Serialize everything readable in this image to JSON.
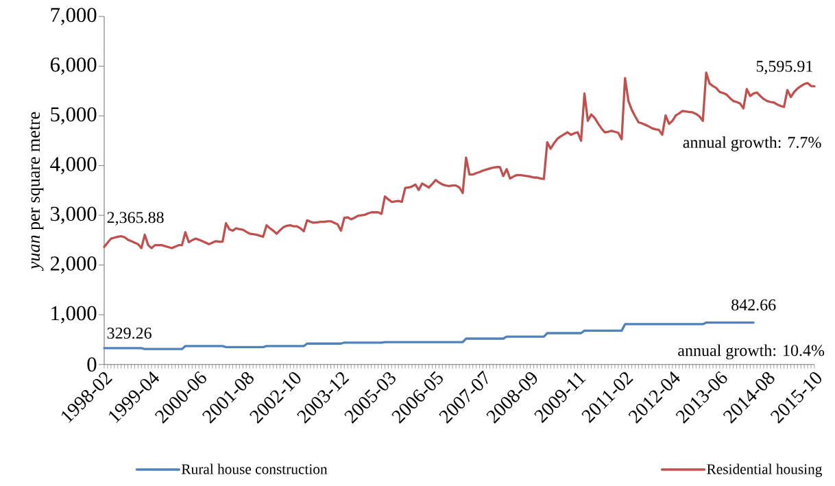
{
  "chart_data": {
    "type": "line",
    "ylabel": "*yuan* per square metre",
    "categories": [
      "1998-02",
      null,
      null,
      null,
      null,
      null,
      null,
      null,
      null,
      null,
      null,
      null,
      null,
      null,
      "1999-04",
      null,
      null,
      null,
      null,
      null,
      null,
      null,
      null,
      null,
      null,
      null,
      null,
      null,
      "2000-06",
      null,
      null,
      null,
      null,
      null,
      null,
      null,
      null,
      null,
      null,
      null,
      null,
      null,
      "2001-08",
      null,
      null,
      null,
      null,
      null,
      null,
      null,
      null,
      null,
      null,
      null,
      null,
      null,
      "2002-10",
      null,
      null,
      null,
      null,
      null,
      null,
      null,
      null,
      null,
      null,
      null,
      null,
      null,
      "2003-12",
      null,
      null,
      null,
      null,
      null,
      null,
      null,
      null,
      null,
      null,
      null,
      null,
      null,
      "2005-03",
      null,
      null,
      null,
      null,
      null,
      null,
      null,
      null,
      null,
      null,
      null,
      null,
      null,
      "2006-05",
      null,
      null,
      null,
      null,
      null,
      null,
      null,
      null,
      null,
      null,
      null,
      null,
      null,
      "2007-07",
      null,
      null,
      null,
      null,
      null,
      null,
      null,
      null,
      null,
      null,
      null,
      null,
      null,
      "2008-09",
      null,
      null,
      null,
      null,
      null,
      null,
      null,
      null,
      null,
      null,
      null,
      null,
      null,
      "2009-11",
      null,
      null,
      null,
      null,
      null,
      null,
      null,
      null,
      null,
      null,
      null,
      null,
      null,
      "2011-02",
      null,
      null,
      null,
      null,
      null,
      null,
      null,
      null,
      null,
      null,
      null,
      null,
      null,
      "2012-04",
      null,
      null,
      null,
      null,
      null,
      null,
      null,
      null,
      null,
      null,
      null,
      null,
      null,
      "2013-06",
      null,
      null,
      null,
      null,
      null,
      null,
      null,
      null,
      null,
      null,
      null,
      null,
      null,
      "2014-08",
      null,
      null,
      null,
      null,
      null,
      null,
      null,
      null,
      null,
      null,
      null,
      null,
      null,
      "2015-10"
    ],
    "series": [
      {
        "name": "Rural house construction",
        "color": "#4f81bd",
        "values": [
          329.26,
          329.26,
          329.26,
          329.26,
          329.26,
          329.26,
          329.26,
          329.26,
          329.26,
          329.26,
          329.26,
          329.26,
          310,
          310,
          310,
          310,
          310,
          310,
          310,
          310,
          310,
          310,
          310,
          310,
          370,
          370,
          370,
          370,
          370,
          370,
          370,
          370,
          370,
          370,
          370,
          370,
          350,
          350,
          350,
          350,
          350,
          350,
          350,
          350,
          350,
          350,
          350,
          350,
          370,
          370,
          370,
          370,
          370,
          370,
          370,
          370,
          370,
          370,
          370,
          370,
          420,
          420,
          420,
          420,
          420,
          420,
          420,
          420,
          420,
          420,
          420,
          440,
          440,
          440,
          440,
          440,
          440,
          440,
          440,
          440,
          440,
          440,
          440,
          450,
          450,
          450,
          450,
          450,
          450,
          450,
          450,
          450,
          450,
          450,
          450,
          450,
          450,
          450,
          450,
          450,
          450,
          450,
          450,
          450,
          450,
          450,
          450,
          520,
          520,
          520,
          520,
          520,
          520,
          520,
          520,
          520,
          520,
          520,
          520,
          560,
          560,
          560,
          560,
          560,
          560,
          560,
          560,
          560,
          560,
          560,
          560,
          630,
          630,
          630,
          630,
          630,
          630,
          630,
          630,
          630,
          630,
          630,
          680,
          680,
          680,
          680,
          680,
          680,
          680,
          680,
          680,
          680,
          680,
          680,
          810,
          810,
          810,
          810,
          810,
          810,
          810,
          810,
          810,
          810,
          810,
          810,
          810,
          810,
          810,
          810,
          810,
          810,
          810,
          810,
          810,
          810,
          810,
          810,
          842.66,
          842.66,
          842.66,
          842.66,
          842.66,
          842.66,
          842.66,
          842.66,
          842.66,
          842.66,
          842.66,
          842.66,
          842.66,
          842.66,
          842.66,
          null,
          null,
          null,
          null,
          null,
          null,
          null,
          null,
          null,
          null,
          null,
          null,
          null,
          null,
          null,
          null,
          null,
          null
        ],
        "value_labels": [
          "329.26",
          null,
          null,
          null,
          null,
          null,
          null,
          null,
          null,
          null,
          null,
          null,
          null,
          null,
          null,
          null,
          null,
          null,
          null,
          null,
          null,
          null,
          null,
          null,
          null,
          null,
          null,
          null,
          null,
          null,
          null,
          null,
          null,
          null,
          null,
          null,
          null,
          null,
          null,
          null,
          null,
          null,
          null,
          null,
          null,
          null,
          null,
          null,
          null,
          null,
          null,
          null,
          null,
          null,
          null,
          null,
          null,
          null,
          null,
          null,
          null,
          null,
          null,
          null,
          null,
          null,
          null,
          null,
          null,
          null,
          null,
          null,
          null,
          null,
          null,
          null,
          null,
          null,
          null,
          null,
          null,
          null,
          null,
          null,
          null,
          null,
          null,
          null,
          null,
          null,
          null,
          null,
          null,
          null,
          null,
          null,
          null,
          null,
          null,
          null,
          null,
          null,
          null,
          null,
          null,
          null,
          null,
          null,
          null,
          null,
          null,
          null,
          null,
          null,
          null,
          null,
          null,
          null,
          null,
          null,
          null,
          null,
          null,
          null,
          null,
          null,
          null,
          null,
          null,
          null,
          null,
          null,
          null,
          null,
          null,
          null,
          null,
          null,
          null,
          null,
          null,
          null,
          null,
          null,
          null,
          null,
          null,
          null,
          null,
          null,
          null,
          null,
          null,
          null,
          null,
          null,
          null,
          null,
          null,
          null,
          null,
          null,
          null,
          null,
          null,
          null,
          null,
          null,
          null,
          null,
          null,
          null,
          null,
          null,
          null,
          null,
          null,
          null,
          null,
          null,
          null,
          null,
          null,
          null,
          null,
          null,
          null,
          null,
          null,
          null,
          null,
          null,
          "842.66",
          null,
          null,
          null,
          null,
          null,
          null,
          null,
          null,
          null,
          null,
          null,
          null,
          null,
          null,
          null,
          null,
          null,
          null
        ]
      },
      {
        "name": "Residential housing",
        "color": "#c0504d",
        "values": [
          2365.88,
          2450,
          2530,
          2550,
          2570,
          2580,
          2560,
          2510,
          2480,
          2450,
          2420,
          2340,
          2610,
          2400,
          2340,
          2400,
          2400,
          2400,
          2380,
          2360,
          2340,
          2370,
          2400,
          2400,
          2660,
          2460,
          2500,
          2530,
          2510,
          2480,
          2450,
          2420,
          2450,
          2480,
          2470,
          2470,
          2840,
          2720,
          2690,
          2740,
          2720,
          2710,
          2670,
          2630,
          2620,
          2610,
          2590,
          2570,
          2800,
          2740,
          2690,
          2630,
          2700,
          2760,
          2790,
          2800,
          2780,
          2780,
          2740,
          2680,
          2900,
          2870,
          2850,
          2860,
          2870,
          2870,
          2880,
          2880,
          2850,
          2820,
          2690,
          2950,
          2960,
          2920,
          2950,
          2990,
          3000,
          3010,
          3040,
          3060,
          3060,
          3060,
          3030,
          3380,
          3320,
          3270,
          3280,
          3290,
          3270,
          3550,
          3560,
          3580,
          3620,
          3510,
          3640,
          3600,
          3560,
          3630,
          3710,
          3660,
          3620,
          3600,
          3590,
          3600,
          3600,
          3560,
          3450,
          4160,
          3820,
          3820,
          3850,
          3870,
          3900,
          3920,
          3940,
          3960,
          3970,
          3970,
          3790,
          3930,
          3740,
          3780,
          3810,
          3810,
          3800,
          3790,
          3780,
          3760,
          3760,
          3740,
          3730,
          4470,
          4340,
          4450,
          4540,
          4590,
          4630,
          4670,
          4620,
          4650,
          4670,
          4500,
          5450,
          4900,
          5030,
          4960,
          4850,
          4750,
          4670,
          4680,
          4700,
          4680,
          4660,
          4530,
          5760,
          5300,
          5120,
          4990,
          4870,
          4850,
          4820,
          4790,
          4750,
          4730,
          4720,
          4620,
          5010,
          4840,
          4900,
          5010,
          5050,
          5100,
          5090,
          5080,
          5070,
          5040,
          4990,
          4900,
          5870,
          5650,
          5600,
          5560,
          5480,
          5460,
          5430,
          5360,
          5300,
          5280,
          5250,
          5150,
          5540,
          5400,
          5450,
          5470,
          5400,
          5340,
          5300,
          5280,
          5270,
          5230,
          5200,
          5180,
          5520,
          5380,
          5480,
          5550,
          5600,
          5640,
          5660,
          5600,
          5595.91
        ],
        "value_labels": [
          "2,365.88",
          null,
          null,
          null,
          null,
          null,
          null,
          null,
          null,
          null,
          null,
          null,
          null,
          null,
          null,
          null,
          null,
          null,
          null,
          null,
          null,
          null,
          null,
          null,
          null,
          null,
          null,
          null,
          null,
          null,
          null,
          null,
          null,
          null,
          null,
          null,
          null,
          null,
          null,
          null,
          null,
          null,
          null,
          null,
          null,
          null,
          null,
          null,
          null,
          null,
          null,
          null,
          null,
          null,
          null,
          null,
          null,
          null,
          null,
          null,
          null,
          null,
          null,
          null,
          null,
          null,
          null,
          null,
          null,
          null,
          null,
          null,
          null,
          null,
          null,
          null,
          null,
          null,
          null,
          null,
          null,
          null,
          null,
          null,
          null,
          null,
          null,
          null,
          null,
          null,
          null,
          null,
          null,
          null,
          null,
          null,
          null,
          null,
          null,
          null,
          null,
          null,
          null,
          null,
          null,
          null,
          null,
          null,
          null,
          null,
          null,
          null,
          null,
          null,
          null,
          null,
          null,
          null,
          null,
          null,
          null,
          null,
          null,
          null,
          null,
          null,
          null,
          null,
          null,
          null,
          null,
          null,
          null,
          null,
          null,
          null,
          null,
          null,
          null,
          null,
          null,
          null,
          null,
          null,
          null,
          null,
          null,
          null,
          null,
          null,
          null,
          null,
          null,
          null,
          null,
          null,
          null,
          null,
          null,
          null,
          null,
          null,
          null,
          null,
          null,
          null,
          null,
          null,
          null,
          null,
          null,
          null,
          null,
          null,
          null,
          null,
          null,
          null,
          null,
          null,
          null,
          null,
          null,
          null,
          null,
          null,
          null,
          null,
          null,
          null,
          null,
          null,
          null,
          null,
          null,
          null,
          null,
          null,
          null,
          null,
          null,
          null,
          null,
          null,
          null,
          null,
          null,
          null,
          null,
          null,
          "5,595.91"
        ]
      }
    ],
    "ylim": [
      0,
      7000
    ],
    "yticks": [
      0,
      {
        "value": 1000,
        "label": "1,000"
      },
      {
        "value": 2000,
        "label": "2,000"
      },
      {
        "value": 3000,
        "label": "3,000"
      },
      {
        "value": 4000,
        "label": "4,000"
      },
      {
        "value": 5000,
        "label": "5,000"
      },
      {
        "value": 6000,
        "label": "6,000"
      },
      {
        "value": 7000,
        "label": "7,000"
      }
    ],
    "annotations": [
      "annual growth: 7.7%",
      "annual growth: 10.4%"
    ],
    "legend": "bottom"
  }
}
